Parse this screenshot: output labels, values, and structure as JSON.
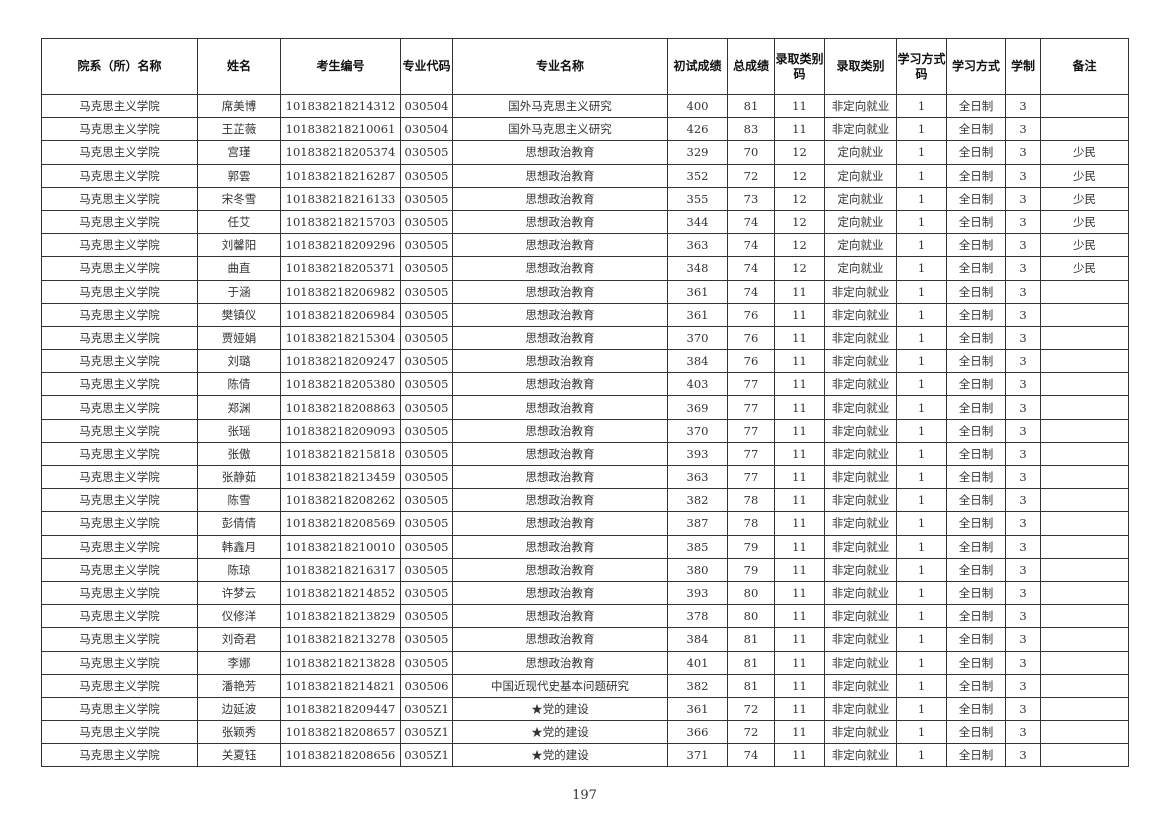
{
  "headers": [
    "院系（所）名称",
    "姓名",
    "考生编号",
    "专业代码",
    "专业名称",
    "初试成绩",
    "总成绩",
    "录取类别码",
    "录取类别",
    "学习方式码",
    "学习方式",
    "学制",
    "备注"
  ],
  "rows": [
    [
      "马克思主义学院",
      "席美博",
      "101838218214312",
      "030504",
      "国外马克思主义研究",
      "400",
      "81",
      "11",
      "非定向就业",
      "1",
      "全日制",
      "3",
      ""
    ],
    [
      "马克思主义学院",
      "王芷薇",
      "101838218210061",
      "030504",
      "国外马克思主义研究",
      "426",
      "83",
      "11",
      "非定向就业",
      "1",
      "全日制",
      "3",
      ""
    ],
    [
      "马克思主义学院",
      "宫瑾",
      "101838218205374",
      "030505",
      "思想政治教育",
      "329",
      "70",
      "12",
      "定向就业",
      "1",
      "全日制",
      "3",
      "少民"
    ],
    [
      "马克思主义学院",
      "郭雲",
      "101838218216287",
      "030505",
      "思想政治教育",
      "352",
      "72",
      "12",
      "定向就业",
      "1",
      "全日制",
      "3",
      "少民"
    ],
    [
      "马克思主义学院",
      "宋冬雪",
      "101838218216133",
      "030505",
      "思想政治教育",
      "355",
      "73",
      "12",
      "定向就业",
      "1",
      "全日制",
      "3",
      "少民"
    ],
    [
      "马克思主义学院",
      "任艾",
      "101838218215703",
      "030505",
      "思想政治教育",
      "344",
      "74",
      "12",
      "定向就业",
      "1",
      "全日制",
      "3",
      "少民"
    ],
    [
      "马克思主义学院",
      "刘馨阳",
      "101838218209296",
      "030505",
      "思想政治教育",
      "363",
      "74",
      "12",
      "定向就业",
      "1",
      "全日制",
      "3",
      "少民"
    ],
    [
      "马克思主义学院",
      "曲直",
      "101838218205371",
      "030505",
      "思想政治教育",
      "348",
      "74",
      "12",
      "定向就业",
      "1",
      "全日制",
      "3",
      "少民"
    ],
    [
      "马克思主义学院",
      "于涵",
      "101838218206982",
      "030505",
      "思想政治教育",
      "361",
      "74",
      "11",
      "非定向就业",
      "1",
      "全日制",
      "3",
      ""
    ],
    [
      "马克思主义学院",
      "樊镇仪",
      "101838218206984",
      "030505",
      "思想政治教育",
      "361",
      "76",
      "11",
      "非定向就业",
      "1",
      "全日制",
      "3",
      ""
    ],
    [
      "马克思主义学院",
      "贾娅娟",
      "101838218215304",
      "030505",
      "思想政治教育",
      "370",
      "76",
      "11",
      "非定向就业",
      "1",
      "全日制",
      "3",
      ""
    ],
    [
      "马克思主义学院",
      "刘璐",
      "101838218209247",
      "030505",
      "思想政治教育",
      "384",
      "76",
      "11",
      "非定向就业",
      "1",
      "全日制",
      "3",
      ""
    ],
    [
      "马克思主义学院",
      "陈倩",
      "101838218205380",
      "030505",
      "思想政治教育",
      "403",
      "77",
      "11",
      "非定向就业",
      "1",
      "全日制",
      "3",
      ""
    ],
    [
      "马克思主义学院",
      "郑渊",
      "101838218208863",
      "030505",
      "思想政治教育",
      "369",
      "77",
      "11",
      "非定向就业",
      "1",
      "全日制",
      "3",
      ""
    ],
    [
      "马克思主义学院",
      "张瑶",
      "101838218209093",
      "030505",
      "思想政治教育",
      "370",
      "77",
      "11",
      "非定向就业",
      "1",
      "全日制",
      "3",
      ""
    ],
    [
      "马克思主义学院",
      "张傲",
      "101838218215818",
      "030505",
      "思想政治教育",
      "393",
      "77",
      "11",
      "非定向就业",
      "1",
      "全日制",
      "3",
      ""
    ],
    [
      "马克思主义学院",
      "张静茹",
      "101838218213459",
      "030505",
      "思想政治教育",
      "363",
      "77",
      "11",
      "非定向就业",
      "1",
      "全日制",
      "3",
      ""
    ],
    [
      "马克思主义学院",
      "陈雪",
      "101838218208262",
      "030505",
      "思想政治教育",
      "382",
      "78",
      "11",
      "非定向就业",
      "1",
      "全日制",
      "3",
      ""
    ],
    [
      "马克思主义学院",
      "彭倩倩",
      "101838218208569",
      "030505",
      "思想政治教育",
      "387",
      "78",
      "11",
      "非定向就业",
      "1",
      "全日制",
      "3",
      ""
    ],
    [
      "马克思主义学院",
      "韩鑫月",
      "101838218210010",
      "030505",
      "思想政治教育",
      "385",
      "79",
      "11",
      "非定向就业",
      "1",
      "全日制",
      "3",
      ""
    ],
    [
      "马克思主义学院",
      "陈琼",
      "101838218216317",
      "030505",
      "思想政治教育",
      "380",
      "79",
      "11",
      "非定向就业",
      "1",
      "全日制",
      "3",
      ""
    ],
    [
      "马克思主义学院",
      "许梦云",
      "101838218214852",
      "030505",
      "思想政治教育",
      "393",
      "80",
      "11",
      "非定向就业",
      "1",
      "全日制",
      "3",
      ""
    ],
    [
      "马克思主义学院",
      "仪修洋",
      "101838218213829",
      "030505",
      "思想政治教育",
      "378",
      "80",
      "11",
      "非定向就业",
      "1",
      "全日制",
      "3",
      ""
    ],
    [
      "马克思主义学院",
      "刘奇君",
      "101838218213278",
      "030505",
      "思想政治教育",
      "384",
      "81",
      "11",
      "非定向就业",
      "1",
      "全日制",
      "3",
      ""
    ],
    [
      "马克思主义学院",
      "李娜",
      "101838218213828",
      "030505",
      "思想政治教育",
      "401",
      "81",
      "11",
      "非定向就业",
      "1",
      "全日制",
      "3",
      ""
    ],
    [
      "马克思主义学院",
      "潘艳芳",
      "101838218214821",
      "030506",
      "中国近现代史基本问题研究",
      "382",
      "81",
      "11",
      "非定向就业",
      "1",
      "全日制",
      "3",
      ""
    ],
    [
      "马克思主义学院",
      "边延波",
      "101838218209447",
      "0305Z1",
      "★党的建设",
      "361",
      "72",
      "11",
      "非定向就业",
      "1",
      "全日制",
      "3",
      ""
    ],
    [
      "马克思主义学院",
      "张颖秀",
      "101838218208657",
      "0305Z1",
      "★党的建设",
      "366",
      "72",
      "11",
      "非定向就业",
      "1",
      "全日制",
      "3",
      ""
    ],
    [
      "马克思主义学院",
      "关夏钰",
      "101838218208656",
      "0305Z1",
      "★党的建设",
      "371",
      "74",
      "11",
      "非定向就业",
      "1",
      "全日制",
      "3",
      ""
    ]
  ],
  "page_number": "197"
}
